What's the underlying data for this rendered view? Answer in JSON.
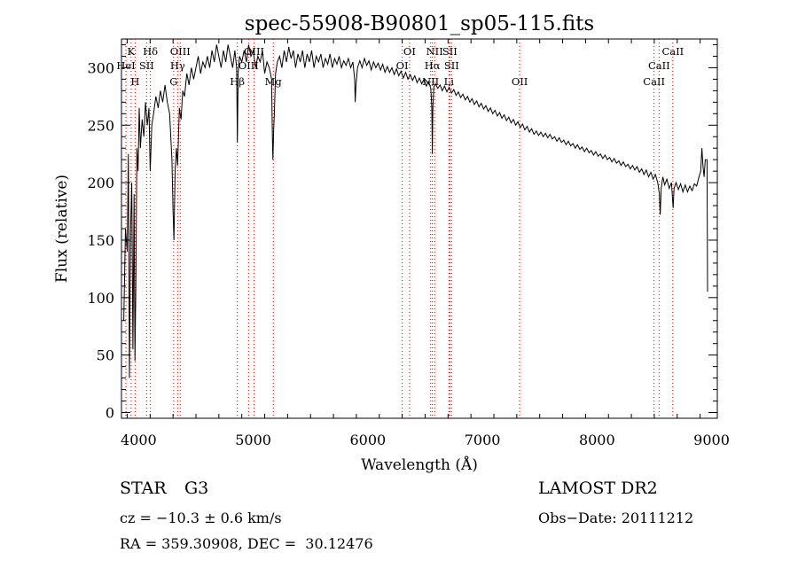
{
  "chart_data": {
    "type": "line",
    "title": "spec-55908-B90801_sp05-115.fits",
    "xlabel": "Wavelength (Å)",
    "ylabel": "Flux (relative)",
    "xlim": [
      3850,
      9050
    ],
    "ylim": [
      -5,
      325
    ],
    "xticks": [
      4000,
      5000,
      6000,
      7000,
      8000,
      9000
    ],
    "yticks": [
      0,
      50,
      100,
      150,
      200,
      250,
      300
    ],
    "series": [
      {
        "values": [
          [
            3870,
            80
          ],
          [
            3885,
            160
          ],
          [
            3900,
            140
          ],
          [
            3910,
            225
          ],
          [
            3920,
            30
          ],
          [
            3930,
            160
          ],
          [
            3940,
            200
          ],
          [
            3950,
            55
          ],
          [
            3960,
            190
          ],
          [
            3968,
            45
          ],
          [
            3975,
            110
          ],
          [
            3985,
            230
          ],
          [
            3995,
            210
          ],
          [
            4005,
            265
          ],
          [
            4015,
            230
          ],
          [
            4030,
            255
          ],
          [
            4045,
            240
          ],
          [
            4060,
            270
          ],
          [
            4075,
            250
          ],
          [
            4090,
            265
          ],
          [
            4101,
            210
          ],
          [
            4115,
            250
          ],
          [
            4130,
            260
          ],
          [
            4150,
            275
          ],
          [
            4170,
            265
          ],
          [
            4190,
            280
          ],
          [
            4210,
            270
          ],
          [
            4230,
            285
          ],
          [
            4250,
            270
          ],
          [
            4270,
            260
          ],
          [
            4290,
            220
          ],
          [
            4300,
            175
          ],
          [
            4308,
            150
          ],
          [
            4318,
            210
          ],
          [
            4330,
            230
          ],
          [
            4340,
            215
          ],
          [
            4355,
            265
          ],
          [
            4370,
            255
          ],
          [
            4385,
            280
          ],
          [
            4400,
            275
          ],
          [
            4420,
            295
          ],
          [
            4440,
            285
          ],
          [
            4460,
            300
          ],
          [
            4480,
            290
          ],
          [
            4500,
            300
          ],
          [
            4520,
            310
          ],
          [
            4540,
            295
          ],
          [
            4560,
            305
          ],
          [
            4580,
            300
          ],
          [
            4600,
            310
          ],
          [
            4620,
            300
          ],
          [
            4640,
            315
          ],
          [
            4660,
            305
          ],
          [
            4680,
            320
          ],
          [
            4700,
            310
          ],
          [
            4720,
            300
          ],
          [
            4740,
            315
          ],
          [
            4760,
            305
          ],
          [
            4780,
            320
          ],
          [
            4800,
            310
          ],
          [
            4820,
            300
          ],
          [
            4840,
            315
          ],
          [
            4855,
            300
          ],
          [
            4861,
            235
          ],
          [
            4868,
            295
          ],
          [
            4880,
            310
          ],
          [
            4900,
            305
          ],
          [
            4920,
            315
          ],
          [
            4940,
            305
          ],
          [
            4960,
            320
          ],
          [
            4980,
            310
          ],
          [
            5000,
            315
          ],
          [
            5020,
            300
          ],
          [
            5040,
            310
          ],
          [
            5060,
            305
          ],
          [
            5080,
            315
          ],
          [
            5100,
            295
          ],
          [
            5120,
            305
          ],
          [
            5140,
            300
          ],
          [
            5160,
            290
          ],
          [
            5167,
            240
          ],
          [
            5172,
            220
          ],
          [
            5178,
            245
          ],
          [
            5184,
            260
          ],
          [
            5195,
            295
          ],
          [
            5210,
            305
          ],
          [
            5230,
            310
          ],
          [
            5250,
            300
          ],
          [
            5270,
            315
          ],
          [
            5290,
            305
          ],
          [
            5310,
            318
          ],
          [
            5330,
            308
          ],
          [
            5350,
            315
          ],
          [
            5370,
            300
          ],
          [
            5390,
            312
          ],
          [
            5410,
            305
          ],
          [
            5430,
            315
          ],
          [
            5450,
            300
          ],
          [
            5470,
            312
          ],
          [
            5490,
            305
          ],
          [
            5510,
            315
          ],
          [
            5530,
            300
          ],
          [
            5550,
            310
          ],
          [
            5570,
            305
          ],
          [
            5590,
            312
          ],
          [
            5610,
            300
          ],
          [
            5630,
            308
          ],
          [
            5650,
            303
          ],
          [
            5670,
            312
          ],
          [
            5690,
            300
          ],
          [
            5710,
            308
          ],
          [
            5730,
            303
          ],
          [
            5750,
            310
          ],
          [
            5770,
            300
          ],
          [
            5790,
            306
          ],
          [
            5810,
            302
          ],
          [
            5830,
            308
          ],
          [
            5850,
            300
          ],
          [
            5870,
            305
          ],
          [
            5885,
            290
          ],
          [
            5890,
            270
          ],
          [
            5897,
            285
          ],
          [
            5910,
            300
          ],
          [
            5930,
            306
          ],
          [
            5950,
            300
          ],
          [
            5970,
            308
          ],
          [
            5990,
            302
          ],
          [
            6010,
            306
          ],
          [
            6030,
            298
          ],
          [
            6050,
            305
          ],
          [
            6070,
            300
          ],
          [
            6090,
            304
          ],
          [
            6110,
            298
          ],
          [
            6130,
            303
          ],
          [
            6150,
            296
          ],
          [
            6170,
            301
          ],
          [
            6190,
            296
          ],
          [
            6210,
            300
          ],
          [
            6230,
            294
          ],
          [
            6250,
            299
          ],
          [
            6270,
            293
          ],
          [
            6290,
            297
          ],
          [
            6310,
            291
          ],
          [
            6330,
            296
          ],
          [
            6350,
            290
          ],
          [
            6370,
            294
          ],
          [
            6390,
            289
          ],
          [
            6410,
            293
          ],
          [
            6430,
            287
          ],
          [
            6450,
            291
          ],
          [
            6470,
            286
          ],
          [
            6490,
            290
          ],
          [
            6510,
            284
          ],
          [
            6530,
            288
          ],
          [
            6550,
            282
          ],
          [
            6558,
            265
          ],
          [
            6563,
            225
          ],
          [
            6568,
            265
          ],
          [
            6575,
            283
          ],
          [
            6590,
            286
          ],
          [
            6610,
            282
          ],
          [
            6630,
            285
          ],
          [
            6650,
            280
          ],
          [
            6670,
            284
          ],
          [
            6690,
            279
          ],
          [
            6710,
            283
          ],
          [
            6730,
            278
          ],
          [
            6750,
            281
          ],
          [
            6770,
            276
          ],
          [
            6790,
            279
          ],
          [
            6810,
            274
          ],
          [
            6830,
            277
          ],
          [
            6850,
            272
          ],
          [
            6870,
            275
          ],
          [
            6890,
            270
          ],
          [
            6910,
            273
          ],
          [
            6930,
            268
          ],
          [
            6950,
            271
          ],
          [
            6970,
            266
          ],
          [
            6990,
            269
          ],
          [
            7010,
            264
          ],
          [
            7030,
            267
          ],
          [
            7050,
            262
          ],
          [
            7070,
            265
          ],
          [
            7090,
            260
          ],
          [
            7110,
            263
          ],
          [
            7130,
            258
          ],
          [
            7150,
            261
          ],
          [
            7170,
            256
          ],
          [
            7190,
            259
          ],
          [
            7210,
            254
          ],
          [
            7230,
            257
          ],
          [
            7250,
            252
          ],
          [
            7270,
            255
          ],
          [
            7290,
            250
          ],
          [
            7310,
            253
          ],
          [
            7330,
            248
          ],
          [
            7350,
            251
          ],
          [
            7370,
            246
          ],
          [
            7390,
            249
          ],
          [
            7410,
            244
          ],
          [
            7430,
            247
          ],
          [
            7450,
            242
          ],
          [
            7470,
            245
          ],
          [
            7490,
            241
          ],
          [
            7510,
            244
          ],
          [
            7530,
            240
          ],
          [
            7550,
            243
          ],
          [
            7570,
            239
          ],
          [
            7590,
            242
          ],
          [
            7610,
            238
          ],
          [
            7630,
            240
          ],
          [
            7650,
            236
          ],
          [
            7670,
            239
          ],
          [
            7690,
            235
          ],
          [
            7710,
            237
          ],
          [
            7730,
            233
          ],
          [
            7750,
            236
          ],
          [
            7770,
            232
          ],
          [
            7790,
            234
          ],
          [
            7810,
            230
          ],
          [
            7830,
            233
          ],
          [
            7850,
            229
          ],
          [
            7870,
            231
          ],
          [
            7890,
            227
          ],
          [
            7910,
            230
          ],
          [
            7930,
            226
          ],
          [
            7950,
            228
          ],
          [
            7970,
            224
          ],
          [
            7990,
            227
          ],
          [
            8010,
            223
          ],
          [
            8030,
            225
          ],
          [
            8050,
            221
          ],
          [
            8070,
            224
          ],
          [
            8090,
            220
          ],
          [
            8110,
            222
          ],
          [
            8130,
            218
          ],
          [
            8150,
            221
          ],
          [
            8170,
            217
          ],
          [
            8190,
            219
          ],
          [
            8210,
            215
          ],
          [
            8230,
            218
          ],
          [
            8250,
            214
          ],
          [
            8270,
            216
          ],
          [
            8290,
            212
          ],
          [
            8310,
            215
          ],
          [
            8330,
            211
          ],
          [
            8350,
            214
          ],
          [
            8370,
            209
          ],
          [
            8390,
            212
          ],
          [
            8410,
            207
          ],
          [
            8430,
            211
          ],
          [
            8450,
            205
          ],
          [
            8470,
            209
          ],
          [
            8490,
            203
          ],
          [
            8510,
            207
          ],
          [
            8530,
            200
          ],
          [
            8545,
            190
          ],
          [
            8552,
            172
          ],
          [
            8560,
            195
          ],
          [
            8575,
            205
          ],
          [
            8590,
            198
          ],
          [
            8610,
            203
          ],
          [
            8630,
            195
          ],
          [
            8650,
            200
          ],
          [
            8660,
            185
          ],
          [
            8665,
            178
          ],
          [
            8672,
            195
          ],
          [
            8690,
            200
          ],
          [
            8710,
            194
          ],
          [
            8730,
            199
          ],
          [
            8750,
            192
          ],
          [
            8770,
            198
          ],
          [
            8790,
            192
          ],
          [
            8810,
            197
          ],
          [
            8830,
            193
          ],
          [
            8850,
            199
          ],
          [
            8870,
            197
          ],
          [
            8890,
            205
          ],
          [
            8905,
            210
          ],
          [
            8915,
            230
          ],
          [
            8925,
            215
          ],
          [
            8935,
            205
          ],
          [
            8945,
            220
          ],
          [
            8960,
            220
          ],
          [
            8965,
            105
          ]
        ]
      }
    ],
    "lines": [
      {
        "name": "K",
        "x": 3934,
        "row": 1
      },
      {
        "name": "HeI",
        "x": 3889,
        "row": 2
      },
      {
        "name": "H",
        "x": 3969,
        "row": 3
      },
      {
        "name": "Hδ",
        "x": 4102,
        "row": 1
      },
      {
        "name": "SII",
        "x": 4069,
        "row": 2
      },
      {
        "name": "OIII",
        "x": 4363,
        "row": 1
      },
      {
        "name": "Hγ",
        "x": 4340,
        "row": 2
      },
      {
        "name": "G",
        "x": 4305,
        "row": 3
      },
      {
        "name": "OIII",
        "x": 5007,
        "row": 1
      },
      {
        "name": "OIII",
        "x": 4959,
        "row": 2
      },
      {
        "name": "Hβ",
        "x": 4861,
        "row": 3
      },
      {
        "name": "Mg",
        "x": 5175,
        "row": 3
      },
      {
        "name": "OI",
        "x": 6364,
        "row": 1
      },
      {
        "name": "OI",
        "x": 6300,
        "row": 2
      },
      {
        "name": "NII",
        "x": 6583,
        "row": 1
      },
      {
        "name": "SII",
        "x": 6716,
        "row": 1
      },
      {
        "name": "Hα",
        "x": 6563,
        "row": 2
      },
      {
        "name": "SII",
        "x": 6731,
        "row": 2
      },
      {
        "name": "NII",
        "x": 6548,
        "row": 3
      },
      {
        "name": "Li",
        "x": 6708,
        "row": 3
      },
      {
        "name": "OII",
        "x": 7325,
        "row": 3
      },
      {
        "name": "CaII",
        "x": 8662,
        "row": 1
      },
      {
        "name": "CaII",
        "x": 8542,
        "row": 2
      },
      {
        "name": "CaII",
        "x": 8498,
        "row": 3
      }
    ]
  },
  "info": {
    "class_label": "STAR",
    "subclass_label": "G3",
    "survey": "LAMOST DR2",
    "cz": "cz = −10.3 ± 0.6 km/s",
    "obs_date": "Obs−Date: 20111212",
    "coords": "RA = 359.30908, DEC =  30.12476"
  },
  "colors": {
    "line_marker": "#cc0000",
    "spectrum": "#000000"
  }
}
